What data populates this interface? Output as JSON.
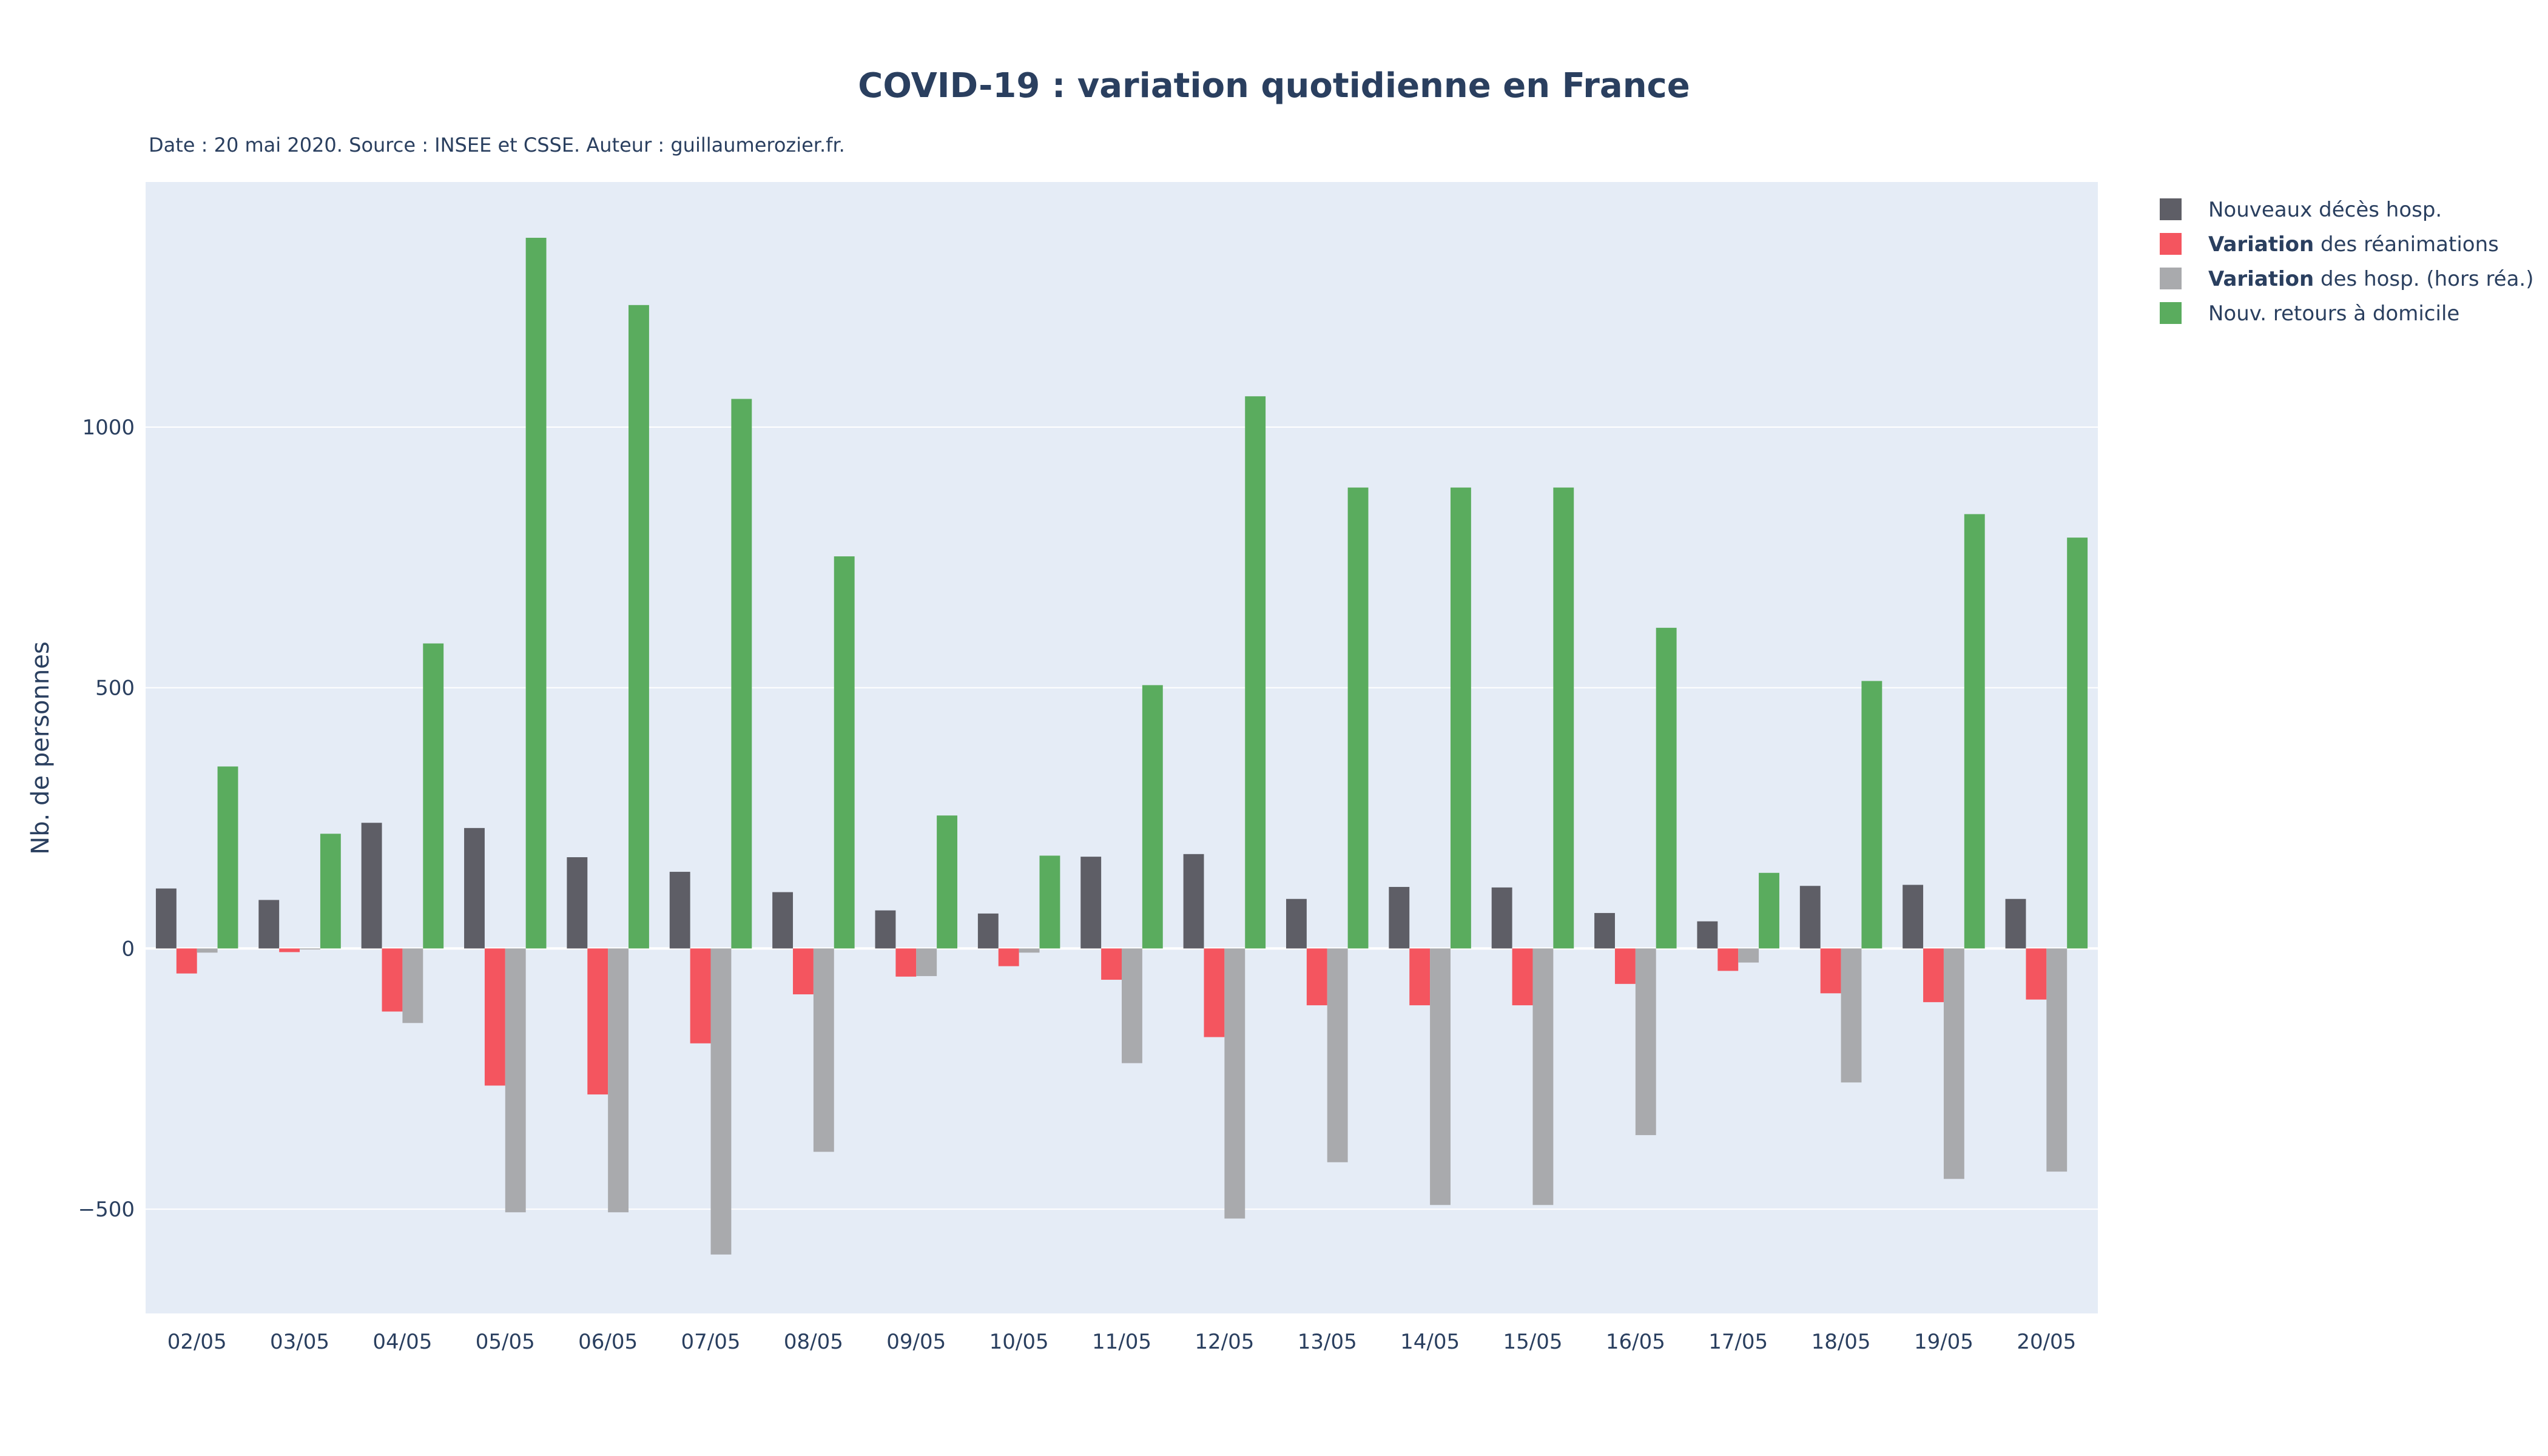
{
  "colors": {
    "plot_bg": "#e5ecf6",
    "grid": "#ffffff",
    "zero_line": "#ffffff",
    "text": "#2a3f5f"
  },
  "chart_data": {
    "type": "bar",
    "title": "COVID-19 : variation quotidienne en France",
    "subtitle": "Date : 20 mai 2020. Source : INSEE et CSSE. Auteur : guillaumerozier.fr.",
    "xlabel": "",
    "ylabel": "Nb. de personnes",
    "ylim": [
      -700,
      1470
    ],
    "yticks": [
      -500,
      0,
      500,
      1000
    ],
    "ytick_labels": [
      "−500",
      "0",
      "500",
      "1000"
    ],
    "grid": true,
    "legend_position": "top-right",
    "categories": [
      "02/05",
      "03/05",
      "04/05",
      "05/05",
      "06/05",
      "07/05",
      "08/05",
      "09/05",
      "10/05",
      "11/05",
      "12/05",
      "13/05",
      "14/05",
      "15/05",
      "16/05",
      "17/05",
      "18/05",
      "19/05",
      "20/05"
    ],
    "series": [
      {
        "name": "Nouveaux décès hosp.",
        "name_bold": "",
        "name_rest": "Nouveaux décès hosp.",
        "color": "#5e5e66",
        "values": [
          115,
          93,
          241,
          231,
          175,
          147,
          108,
          73,
          67,
          176,
          181,
          95,
          118,
          117,
          68,
          52,
          120,
          122,
          95
        ]
      },
      {
        "name": "Variation des réanimations",
        "name_bold": "Variation",
        "name_rest": " des réanimations",
        "color": "#f4555f",
        "values": [
          -48,
          -7,
          -121,
          -263,
          -280,
          -182,
          -88,
          -54,
          -34,
          -60,
          -170,
          -109,
          -109,
          -109,
          -68,
          -43,
          -86,
          -103,
          -98
        ]
      },
      {
        "name": "Variation des hosp. (hors réa.)",
        "name_bold": "Variation",
        "name_rest": " des hosp. (hors réa.)",
        "color": "#a9aaad",
        "values": [
          -8,
          -2,
          -143,
          -506,
          -506,
          -587,
          -390,
          -53,
          -8,
          -220,
          -518,
          -410,
          -492,
          -492,
          -358,
          -27,
          -257,
          -442,
          -428
        ]
      },
      {
        "name": "Nouv. retours à domicile",
        "name_bold": "",
        "name_rest": "Nouv. retours à domicile",
        "color": "#5aac5e",
        "values": [
          349,
          220,
          585,
          1363,
          1234,
          1054,
          752,
          255,
          178,
          505,
          1059,
          884,
          884,
          884,
          615,
          145,
          513,
          833,
          788
        ]
      }
    ]
  }
}
